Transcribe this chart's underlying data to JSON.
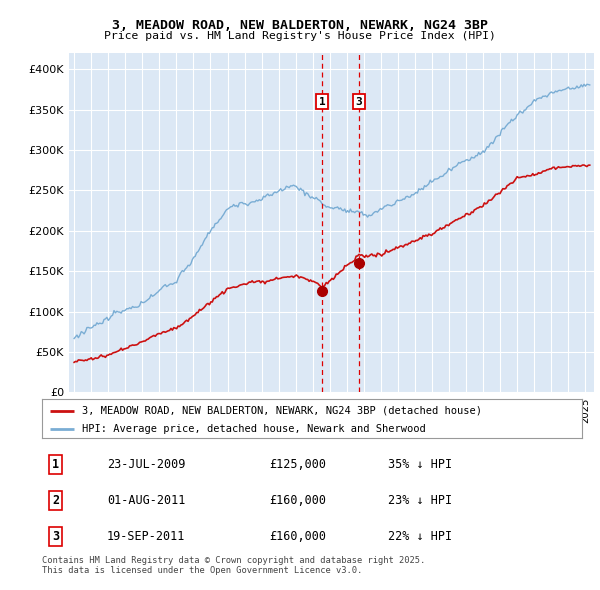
{
  "title": "3, MEADOW ROAD, NEW BALDERTON, NEWARK, NG24 3BP",
  "subtitle": "Price paid vs. HM Land Registry's House Price Index (HPI)",
  "legend_label_red": "3, MEADOW ROAD, NEW BALDERTON, NEWARK, NG24 3BP (detached house)",
  "legend_label_blue": "HPI: Average price, detached house, Newark and Sherwood",
  "footer": "Contains HM Land Registry data © Crown copyright and database right 2025.\nThis data is licensed under the Open Government Licence v3.0.",
  "ylim": [
    0,
    420000
  ],
  "yticks": [
    0,
    50000,
    100000,
    150000,
    200000,
    250000,
    300000,
    350000,
    400000
  ],
  "ytick_labels": [
    "£0",
    "£50K",
    "£100K",
    "£150K",
    "£200K",
    "£250K",
    "£300K",
    "£350K",
    "£400K"
  ],
  "transactions": [
    {
      "label": "1",
      "date": "23-JUL-2009",
      "price": 125000,
      "pct": "35% ↓ HPI",
      "year": 2009.55,
      "show_vline": true
    },
    {
      "label": "2",
      "date": "01-AUG-2011",
      "price": 160000,
      "pct": "23% ↓ HPI",
      "year": 2011.58,
      "show_vline": false
    },
    {
      "label": "3",
      "date": "19-SEP-2011",
      "price": 160000,
      "pct": "22% ↓ HPI",
      "year": 2011.72,
      "show_vline": true
    }
  ],
  "background_color": "#dce8f5",
  "red_color": "#cc1111",
  "blue_color": "#7aadd4",
  "grid_color": "#ffffff",
  "vline_color": "#dd0000",
  "marker_color": "#aa0000"
}
